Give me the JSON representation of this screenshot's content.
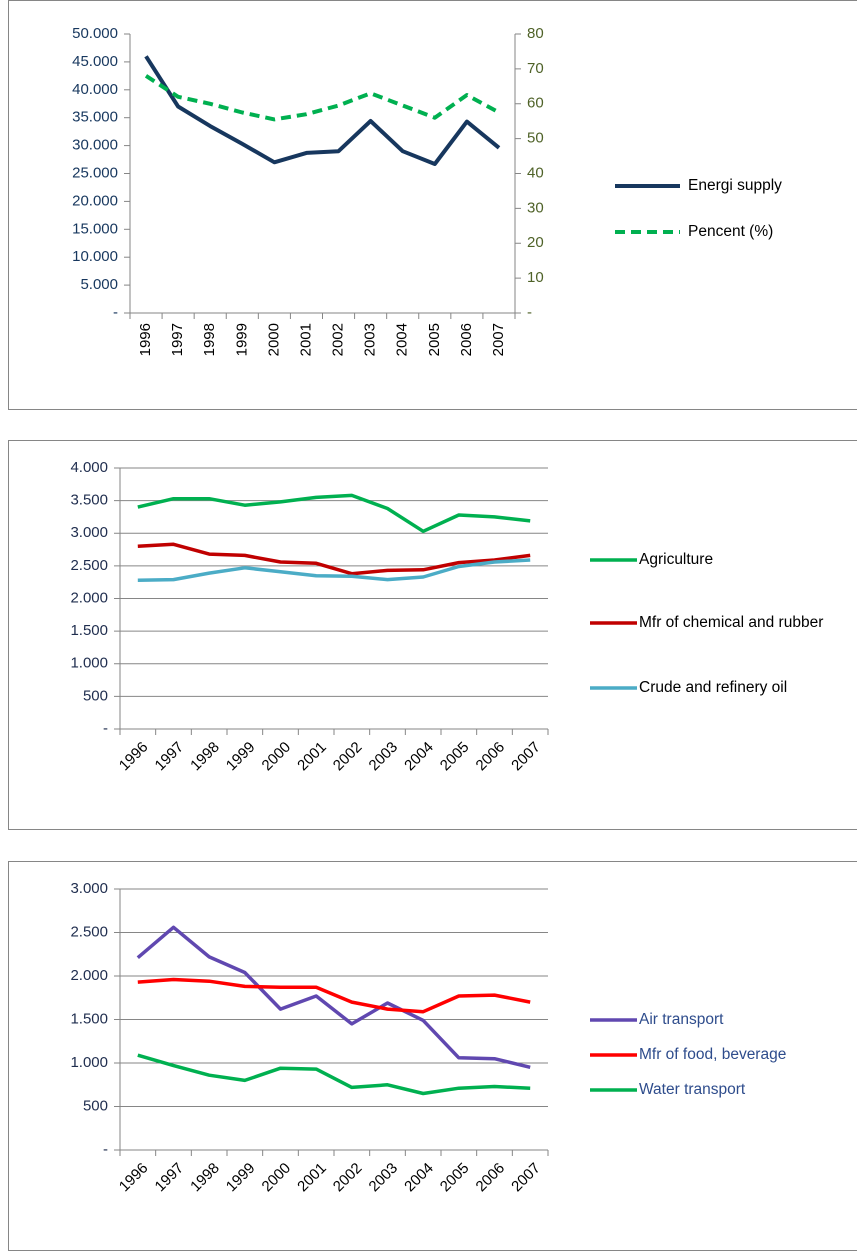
{
  "chart_data": [
    {
      "type": "line",
      "categories": [
        "1996",
        "1997",
        "1998",
        "1999",
        "2000",
        "2001",
        "2002",
        "2003",
        "2004",
        "2005",
        "2006",
        "2007"
      ],
      "series": [
        {
          "name": "Energi supply",
          "color": "#17375e",
          "line_style": "solid",
          "values": [
            46000,
            37000,
            33500,
            30300,
            27000,
            28700,
            29000,
            34400,
            29000,
            26700,
            34300,
            29600
          ]
        },
        {
          "name": "Pencent (%)",
          "color": "#00b050",
          "line_style": "dashed",
          "axis": "y2",
          "values": [
            68,
            62,
            60,
            57.5,
            55.5,
            57,
            59.5,
            63,
            59.5,
            56,
            62.5,
            57.5
          ]
        }
      ],
      "ylim": [
        0,
        50000
      ],
      "yticks": [
        {
          "value": 0,
          "label": "-"
        },
        {
          "value": 5000,
          "label": "5.000"
        },
        {
          "value": 10000,
          "label": "10.000"
        },
        {
          "value": 15000,
          "label": "15.000"
        },
        {
          "value": 20000,
          "label": "20.000"
        },
        {
          "value": 25000,
          "label": "25.000"
        },
        {
          "value": 30000,
          "label": "30.000"
        },
        {
          "value": 35000,
          "label": "35.000"
        },
        {
          "value": 40000,
          "label": "40.000"
        },
        {
          "value": 45000,
          "label": "45.000"
        },
        {
          "value": 50000,
          "label": "50.000"
        }
      ],
      "y2lim": [
        0,
        80
      ],
      "y2ticks": [
        {
          "value": 0,
          "label": "-"
        },
        10,
        20,
        30,
        40,
        50,
        60,
        70,
        80
      ],
      "grid": false,
      "legend": "right"
    },
    {
      "type": "line",
      "categories": [
        "1996",
        "1997",
        "1998",
        "1999",
        "2000",
        "2001",
        "2002",
        "2003",
        "2004",
        "2005",
        "2006",
        "2007"
      ],
      "series": [
        {
          "name": "Agriculture",
          "color": "#00b050",
          "line_style": "solid",
          "values": [
            3400,
            3530,
            3530,
            3430,
            3480,
            3550,
            3580,
            3380,
            3030,
            3280,
            3250,
            3190
          ]
        },
        {
          "name": "Mfr of chemical and rubber",
          "color": "#c00000",
          "line_style": "solid",
          "values": [
            2800,
            2830,
            2680,
            2660,
            2560,
            2540,
            2380,
            2430,
            2440,
            2550,
            2590,
            2660
          ]
        },
        {
          "name": "Crude and refinery oil",
          "color": "#4bacc6",
          "line_style": "solid",
          "values": [
            2280,
            2290,
            2390,
            2470,
            2410,
            2350,
            2340,
            2290,
            2330,
            2490,
            2560,
            2590
          ]
        }
      ],
      "ylim": [
        0,
        4000
      ],
      "yticks": [
        {
          "value": 0,
          "label": "-"
        },
        500,
        {
          "value": 1000,
          "label": "1.000"
        },
        {
          "value": 1500,
          "label": "1.500"
        },
        {
          "value": 2000,
          "label": "2.000"
        },
        {
          "value": 2500,
          "label": "2.500"
        },
        {
          "value": 3000,
          "label": "3.000"
        },
        {
          "value": 3500,
          "label": "3.500"
        },
        {
          "value": 4000,
          "label": "4.000"
        }
      ],
      "grid": true,
      "legend": "right"
    },
    {
      "type": "line",
      "categories": [
        "1996",
        "1997",
        "1998",
        "1999",
        "2000",
        "2001",
        "2002",
        "2003",
        "2004",
        "2005",
        "2006",
        "2007"
      ],
      "series": [
        {
          "name": "Air transport",
          "color": "#6048b0",
          "line_style": "solid",
          "values": [
            2210,
            2560,
            2220,
            2040,
            1620,
            1770,
            1450,
            1690,
            1490,
            1060,
            1050,
            950
          ]
        },
        {
          "name": "Mfr of food, beverage",
          "color": "#ff0000",
          "line_style": "solid",
          "values": [
            1930,
            1960,
            1940,
            1880,
            1870,
            1870,
            1700,
            1620,
            1590,
            1770,
            1780,
            1700
          ]
        },
        {
          "name": "Water transport",
          "color": "#00b050",
          "line_style": "solid",
          "values": [
            1090,
            970,
            860,
            800,
            940,
            930,
            720,
            750,
            650,
            710,
            730,
            710
          ]
        }
      ],
      "ylim": [
        0,
        3000
      ],
      "yticks": [
        {
          "value": 0,
          "label": "-"
        },
        500,
        {
          "value": 1000,
          "label": "1.000"
        },
        {
          "value": 1500,
          "label": "1.500"
        },
        {
          "value": 2000,
          "label": "2.000"
        },
        {
          "value": 2500,
          "label": "2.500"
        },
        {
          "value": 3000,
          "label": "3.000"
        }
      ],
      "grid": true,
      "legend": "right"
    }
  ]
}
